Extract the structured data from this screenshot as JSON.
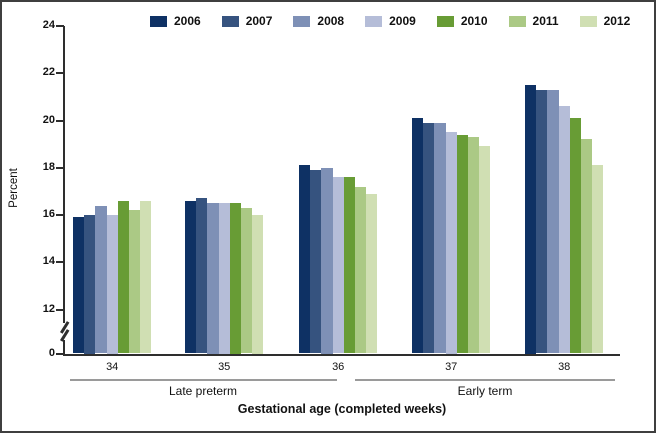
{
  "chart_data": {
    "type": "bar",
    "title": "",
    "ylabel": "Percent",
    "xlabel": "Gestational age (completed weeks)",
    "categories": [
      "34",
      "35",
      "36",
      "37",
      "38"
    ],
    "category_groups": [
      {
        "label": "Late preterm",
        "categories": [
          "34",
          "35",
          "36"
        ]
      },
      {
        "label": "Early term",
        "categories": [
          "37",
          "38"
        ]
      }
    ],
    "y_ticks": [
      24,
      22,
      20,
      18,
      16,
      14,
      12,
      0
    ],
    "ylim": [
      0,
      24
    ],
    "ylim_display": [
      12,
      24
    ],
    "axis_break": true,
    "grid": false,
    "legend_position": "top",
    "series": [
      {
        "name": "2006",
        "color": "#0e3164",
        "values": [
          15.9,
          16.6,
          18.1,
          20.1,
          21.5
        ]
      },
      {
        "name": "2007",
        "color": "#36537f",
        "values": [
          16.0,
          16.7,
          17.9,
          19.9,
          21.3
        ]
      },
      {
        "name": "2008",
        "color": "#7e90b6",
        "values": [
          16.4,
          16.5,
          18.0,
          19.9,
          21.3
        ]
      },
      {
        "name": "2009",
        "color": "#b5bdd8",
        "values": [
          16.0,
          16.5,
          17.6,
          19.5,
          20.6
        ]
      },
      {
        "name": "2010",
        "color": "#689c35",
        "values": [
          16.6,
          16.5,
          17.6,
          19.4,
          20.1
        ]
      },
      {
        "name": "2011",
        "color": "#abc985",
        "values": [
          16.2,
          16.3,
          17.2,
          19.3,
          19.2
        ]
      },
      {
        "name": "2012",
        "color": "#d0dfb3",
        "values": [
          16.6,
          16.0,
          16.9,
          18.9,
          18.1
        ]
      }
    ]
  }
}
